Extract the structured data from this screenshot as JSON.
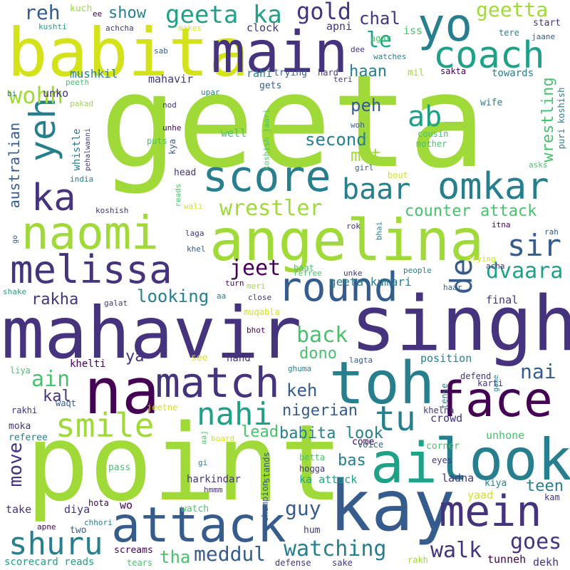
{
  "palette": {
    "yellow": "#d4e21a",
    "lime": "#a0da39",
    "green": "#4ac16d",
    "teal": "#1fa187",
    "cyan": "#277f8e",
    "blue": "#365c8d",
    "indigo": "#46337e",
    "purple": "#440154"
  },
  "words": [
    {
      "text": "geeta",
      "color": "#a0da39"
    },
    {
      "text": "mahavir",
      "color": "#46337e"
    },
    {
      "text": "singh",
      "color": "#46337e"
    },
    {
      "text": "point",
      "color": "#a0da39"
    },
    {
      "text": "kay",
      "color": "#365c8d"
    },
    {
      "text": "angelina",
      "color": "#a0da39"
    },
    {
      "text": "babita",
      "color": "#d4e21a"
    },
    {
      "text": "main",
      "color": "#46337e"
    },
    {
      "text": "naomi",
      "color": "#a0da39"
    },
    {
      "text": "look",
      "color": "#277f8e"
    },
    {
      "text": "ai",
      "color": "#1fa187"
    },
    {
      "text": "na",
      "color": "#440154"
    },
    {
      "text": "toh",
      "color": "#277f8e"
    },
    {
      "text": "face",
      "color": "#440154"
    },
    {
      "text": "attack",
      "color": "#365c8d"
    },
    {
      "text": "mein",
      "color": "#46337e"
    },
    {
      "text": "melissa",
      "color": "#46337e"
    },
    {
      "text": "match",
      "color": "#46337e"
    },
    {
      "text": "yo",
      "color": "#277f8e"
    },
    {
      "text": "coach",
      "color": "#1fa187"
    },
    {
      "text": "score",
      "color": "#277f8e"
    },
    {
      "text": "omkar",
      "color": "#277f8e"
    },
    {
      "text": "round",
      "color": "#365c8d"
    },
    {
      "text": "smile",
      "color": "#a0da39"
    },
    {
      "text": "shuru",
      "color": "#277f8e"
    },
    {
      "text": "tu",
      "color": "#277f8e"
    },
    {
      "text": "nahi",
      "color": "#1fa187"
    },
    {
      "text": "ka",
      "color": "#46337e"
    },
    {
      "text": "yeh",
      "color": "#277f8e"
    },
    {
      "text": "geeta ka",
      "color": "#1fa187"
    },
    {
      "text": "baar",
      "color": "#277f8e"
    },
    {
      "text": "ab",
      "color": "#1fa187"
    },
    {
      "text": "wrestler",
      "color": "#a0da39"
    },
    {
      "text": "sir",
      "color": "#365c8d"
    },
    {
      "text": "de",
      "color": "#365c8d"
    },
    {
      "text": "dvaara",
      "color": "#1fa187"
    },
    {
      "text": "jeet",
      "color": "#440154"
    },
    {
      "text": "wohh",
      "color": "#a0da39"
    },
    {
      "text": "reh",
      "color": "#365c8d"
    },
    {
      "text": "gold",
      "color": "#46337e"
    },
    {
      "text": "geetta",
      "color": "#a0da39"
    },
    {
      "text": "le",
      "color": "#1fa187"
    },
    {
      "text": "show",
      "color": "#277f8e"
    },
    {
      "text": "chal",
      "color": "#46337e"
    },
    {
      "text": "haan",
      "color": "#277f8e"
    },
    {
      "text": "peh",
      "color": "#365c8d"
    },
    {
      "text": "second",
      "color": "#277f8e"
    },
    {
      "text": "mat",
      "color": "#a0da39"
    },
    {
      "text": "counter attack",
      "color": "#4ac16d"
    },
    {
      "text": "wrestling",
      "color": "#4ac16d"
    },
    {
      "text": "back",
      "color": "#4ac16d"
    },
    {
      "text": "looking",
      "color": "#277f8e"
    },
    {
      "text": "rakha",
      "color": "#46337e"
    },
    {
      "text": "ain",
      "color": "#4ac16d"
    },
    {
      "text": "keh",
      "color": "#365c8d"
    },
    {
      "text": "nai",
      "color": "#365c8d"
    },
    {
      "text": "dono",
      "color": "#4ac16d"
    },
    {
      "text": "ya",
      "color": "#46337e"
    },
    {
      "text": "kal",
      "color": "#46337e"
    },
    {
      "text": "nigerian",
      "color": "#365c8d"
    },
    {
      "text": "babita look",
      "color": "#277f8e"
    },
    {
      "text": "move",
      "color": "#46337e"
    },
    {
      "text": "lead",
      "color": "#4ac16d"
    },
    {
      "text": "bas",
      "color": "#277f8e"
    },
    {
      "text": "guy",
      "color": "#365c8d"
    },
    {
      "text": "teen",
      "color": "#277f8e"
    },
    {
      "text": "watching",
      "color": "#277f8e"
    },
    {
      "text": "meddul",
      "color": "#365c8d"
    },
    {
      "text": "tha",
      "color": "#4ac16d"
    },
    {
      "text": "walk",
      "color": "#46337e"
    },
    {
      "text": "goes",
      "color": "#46337e"
    },
    {
      "text": "australian",
      "color": "#365c8d"
    },
    {
      "text": "geeta kumari",
      "color": "#277f8e"
    },
    {
      "text": "mushkil",
      "color": "#277f8e"
    },
    {
      "text": "mahavir",
      "color": "#46337e"
    },
    {
      "text": "unko",
      "color": "#46337e"
    },
    {
      "text": "clock",
      "color": "#46337e"
    },
    {
      "text": "apni",
      "color": "#46337e"
    },
    {
      "text": "iss",
      "color": "#4ac16d"
    },
    {
      "text": "start",
      "color": "#46337e"
    },
    {
      "text": "tere",
      "color": "#277f8e"
    },
    {
      "text": "kuch",
      "color": "#a0da39"
    },
    {
      "text": "ee",
      "color": "#440154"
    },
    {
      "text": "kushti",
      "color": "#1fa187"
    },
    {
      "text": "achcha",
      "color": "#46337e"
    },
    {
      "text": "makes",
      "color": "#d4e21a"
    },
    {
      "text": "agar",
      "color": "#4ac16d"
    },
    {
      "text": "dee",
      "color": "#46337e"
    },
    {
      "text": "watches",
      "color": "#277f8e"
    },
    {
      "text": "jaane",
      "color": "#365c8d"
    },
    {
      "text": "sab",
      "color": "#365c8d"
    },
    {
      "text": "upar",
      "color": "#277f8e"
    },
    {
      "text": "rahi",
      "color": "#277f8e"
    },
    {
      "text": "trying",
      "color": "#365c8d"
    },
    {
      "text": "hard",
      "color": "#46337e"
    },
    {
      "text": "mil",
      "color": "#a0da39"
    },
    {
      "text": "sakta",
      "color": "#440154"
    },
    {
      "text": "towards",
      "color": "#277f8e"
    },
    {
      "text": "peeth",
      "color": "#4ac16d"
    },
    {
      "text": "gets",
      "color": "#365c8d"
    },
    {
      "text": "teri",
      "color": "#46337e"
    },
    {
      "text": "bi",
      "color": "#277f8e"
    },
    {
      "text": "pakad",
      "color": "#a0da39"
    },
    {
      "text": "nod",
      "color": "#46337e"
    },
    {
      "text": "wife",
      "color": "#277f8e"
    },
    {
      "text": "unhe",
      "color": "#440154"
    },
    {
      "text": "koshish jaari",
      "color": "#4ac16d"
    },
    {
      "text": "woh",
      "color": "#365c8d"
    },
    {
      "text": "cousin",
      "color": "#4ac16d"
    },
    {
      "text": "mother",
      "color": "#4ac16d"
    },
    {
      "text": "puri koshish",
      "color": "#277f8e"
    },
    {
      "text": "whistle",
      "color": "#277f8e"
    },
    {
      "text": "pehalwanni",
      "color": "#46337e"
    },
    {
      "text": "puts",
      "color": "#4ac16d"
    },
    {
      "text": "well",
      "color": "#4ac16d"
    },
    {
      "text": "kya",
      "color": "#365c8d"
    },
    {
      "text": "india",
      "color": "#277f8e"
    },
    {
      "text": "head",
      "color": "#46337e"
    },
    {
      "text": "girl",
      "color": "#365c8d"
    },
    {
      "text": "bout",
      "color": "#d4e21a"
    },
    {
      "text": "asks",
      "color": "#4ac16d"
    },
    {
      "text": "wali",
      "color": "#d4e21a"
    },
    {
      "text": "reads",
      "color": "#4ac16d"
    },
    {
      "text": "koshish",
      "color": "#46337e"
    },
    {
      "text": "rok",
      "color": "#46337e"
    },
    {
      "text": "bhai",
      "color": "#277f8e"
    },
    {
      "text": "itna",
      "color": "#440154"
    },
    {
      "text": "laga",
      "color": "#46337e"
    },
    {
      "text": "go",
      "color": "#365c8d"
    },
    {
      "text": "khel",
      "color": "#365c8d"
    },
    {
      "text": "rah",
      "color": "#365c8d"
    },
    {
      "text": "trying",
      "color": "#d4e21a"
    },
    {
      "text": "baat",
      "color": "#4ac16d"
    },
    {
      "text": "acha",
      "color": "#46337e"
    },
    {
      "text": "unke",
      "color": "#46337e"
    },
    {
      "text": "people",
      "color": "#277f8e"
    },
    {
      "text": "refree",
      "color": "#4ac16d"
    },
    {
      "text": "shake",
      "color": "#1fa187"
    },
    {
      "text": "turn",
      "color": "#440154"
    },
    {
      "text": "meri",
      "color": "#a0da39"
    },
    {
      "text": "aa",
      "color": "#277f8e"
    },
    {
      "text": "close",
      "color": "#46337e"
    },
    {
      "text": "haar",
      "color": "#365c8d"
    },
    {
      "text": "galat",
      "color": "#46337e"
    },
    {
      "text": "final",
      "color": "#46337e"
    },
    {
      "text": "muqabla",
      "color": "#d4e21a"
    },
    {
      "text": "bhot",
      "color": "#440154"
    },
    {
      "text": "see",
      "color": "#d4e21a"
    },
    {
      "text": "hand",
      "color": "#46337e"
    },
    {
      "text": "lagta",
      "color": "#365c8d"
    },
    {
      "text": "position",
      "color": "#277f8e"
    },
    {
      "text": "khelti",
      "color": "#440154"
    },
    {
      "text": "liya",
      "color": "#4ac16d"
    },
    {
      "text": "ghuma",
      "color": "#277f8e"
    },
    {
      "text": "defend",
      "color": "#46337e"
    },
    {
      "text": "karti",
      "color": "#46337e"
    },
    {
      "text": "game",
      "color": "#277f8e"
    },
    {
      "text": "tense",
      "color": "#277f8e"
    },
    {
      "text": "waqt",
      "color": "#365c8d"
    },
    {
      "text": "rakhi",
      "color": "#46337e"
    },
    {
      "text": "jeetne",
      "color": "#d4e21a"
    },
    {
      "text": "khelna",
      "color": "#46337e"
    },
    {
      "text": "crowd",
      "color": "#46337e"
    },
    {
      "text": "moka",
      "color": "#46337e"
    },
    {
      "text": "referee",
      "color": "#277f8e"
    },
    {
      "text": "aaj",
      "color": "#4ac16d"
    },
    {
      "text": "board",
      "color": "#d4e21a"
    },
    {
      "text": "come",
      "color": "#440154"
    },
    {
      "text": "voice",
      "color": "#365c8d"
    },
    {
      "text": "corner",
      "color": "#4ac16d"
    },
    {
      "text": "unhone",
      "color": "#4ac16d"
    },
    {
      "text": "betta",
      "color": "#4ac16d"
    },
    {
      "text": "hogga",
      "color": "#46337e"
    },
    {
      "text": "eyes",
      "color": "#46337e"
    },
    {
      "text": "gi",
      "color": "#277f8e"
    },
    {
      "text": "stands",
      "color": "#365c8d"
    },
    {
      "text": "pass",
      "color": "#4ac16d"
    },
    {
      "text": "ka attack",
      "color": "#1fa187"
    },
    {
      "text": "ladna",
      "color": "#46337e"
    },
    {
      "text": "kiya",
      "color": "#277f8e"
    },
    {
      "text": "harkindar",
      "color": "#46337e"
    },
    {
      "text": "hmmm",
      "color": "#46337e"
    },
    {
      "text": "champion",
      "color": "#365c8d"
    },
    {
      "text": "yaad",
      "color": "#d4e21a"
    },
    {
      "text": "take",
      "color": "#46337e"
    },
    {
      "text": "diya",
      "color": "#46337e"
    },
    {
      "text": "hota",
      "color": "#440154"
    },
    {
      "text": "wo",
      "color": "#440154"
    },
    {
      "text": "kam",
      "color": "#46337e"
    },
    {
      "text": "watch",
      "color": "#4ac16d"
    },
    {
      "text": "two",
      "color": "#365c8d"
    },
    {
      "text": "apne",
      "color": "#440154"
    },
    {
      "text": "chhori",
      "color": "#277f8e"
    },
    {
      "text": "hum",
      "color": "#46337e"
    },
    {
      "text": "screams",
      "color": "#440154"
    },
    {
      "text": "scorecard reads",
      "color": "#1fa187"
    },
    {
      "text": "tears",
      "color": "#4ac16d"
    },
    {
      "text": "defense",
      "color": "#46337e"
    },
    {
      "text": "sake",
      "color": "#46337e"
    },
    {
      "text": "rakh",
      "color": "#a0da39"
    },
    {
      "text": "tunneh",
      "color": "#440154"
    },
    {
      "text": "dekh",
      "color": "#46337e"
    }
  ]
}
